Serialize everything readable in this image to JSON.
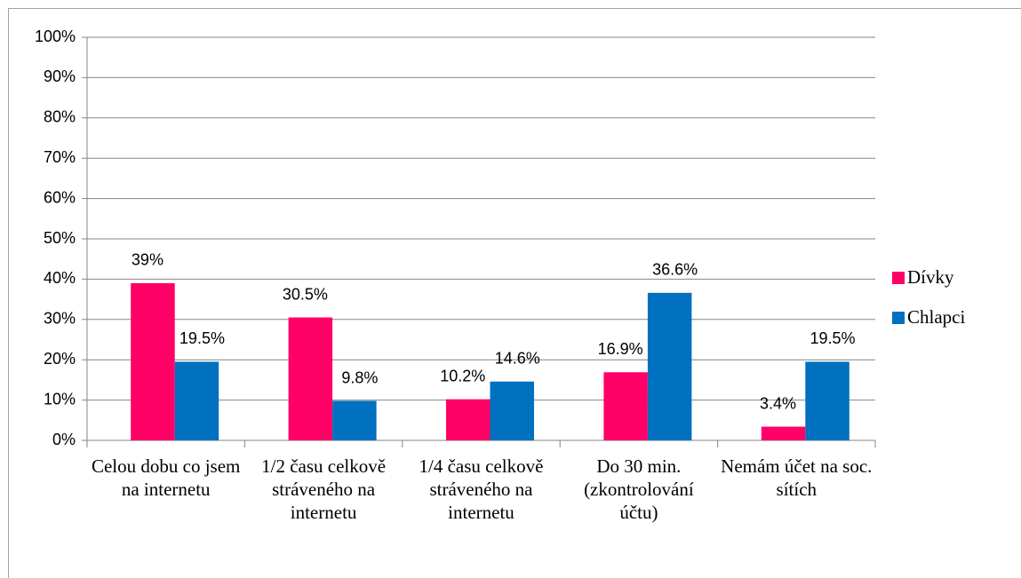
{
  "chart_data": {
    "type": "bar",
    "categories": [
      "Celou dobu co jsem na internetu",
      "1/2 času celkově stráveného na internetu",
      "1/4 času celkově stráveného na internetu",
      "Do 30 min. (zkontrolování účtu)",
      "Nemám účet na soc. sítích"
    ],
    "series": [
      {
        "name": "Dívky",
        "color": "#ff0066",
        "values": [
          39,
          30.5,
          10.2,
          16.9,
          3.4
        ],
        "value_labels": [
          "39%",
          "30.5%",
          "10.2%",
          "16.9%",
          "3.4%"
        ]
      },
      {
        "name": "Chlapci",
        "color": "#0070c0",
        "values": [
          19.5,
          9.8,
          14.6,
          36.6,
          19.5
        ],
        "value_labels": [
          "19.5%",
          "9.8%",
          "14.6%",
          "36.6%",
          "19.5%"
        ]
      }
    ],
    "ylim": [
      0,
      100
    ],
    "yticks": [
      {
        "value": 0,
        "label": "0%"
      },
      {
        "value": 10,
        "label": "10%"
      },
      {
        "value": 20,
        "label": "20%"
      },
      {
        "value": 30,
        "label": "30%"
      },
      {
        "value": 40,
        "label": "40%"
      },
      {
        "value": 50,
        "label": "50%"
      },
      {
        "value": 60,
        "label": "60%"
      },
      {
        "value": 70,
        "label": "70%"
      },
      {
        "value": 80,
        "label": "80%"
      },
      {
        "value": 90,
        "label": "90%"
      },
      {
        "value": 100,
        "label": "100%"
      }
    ],
    "grid": true,
    "legend": "right"
  }
}
